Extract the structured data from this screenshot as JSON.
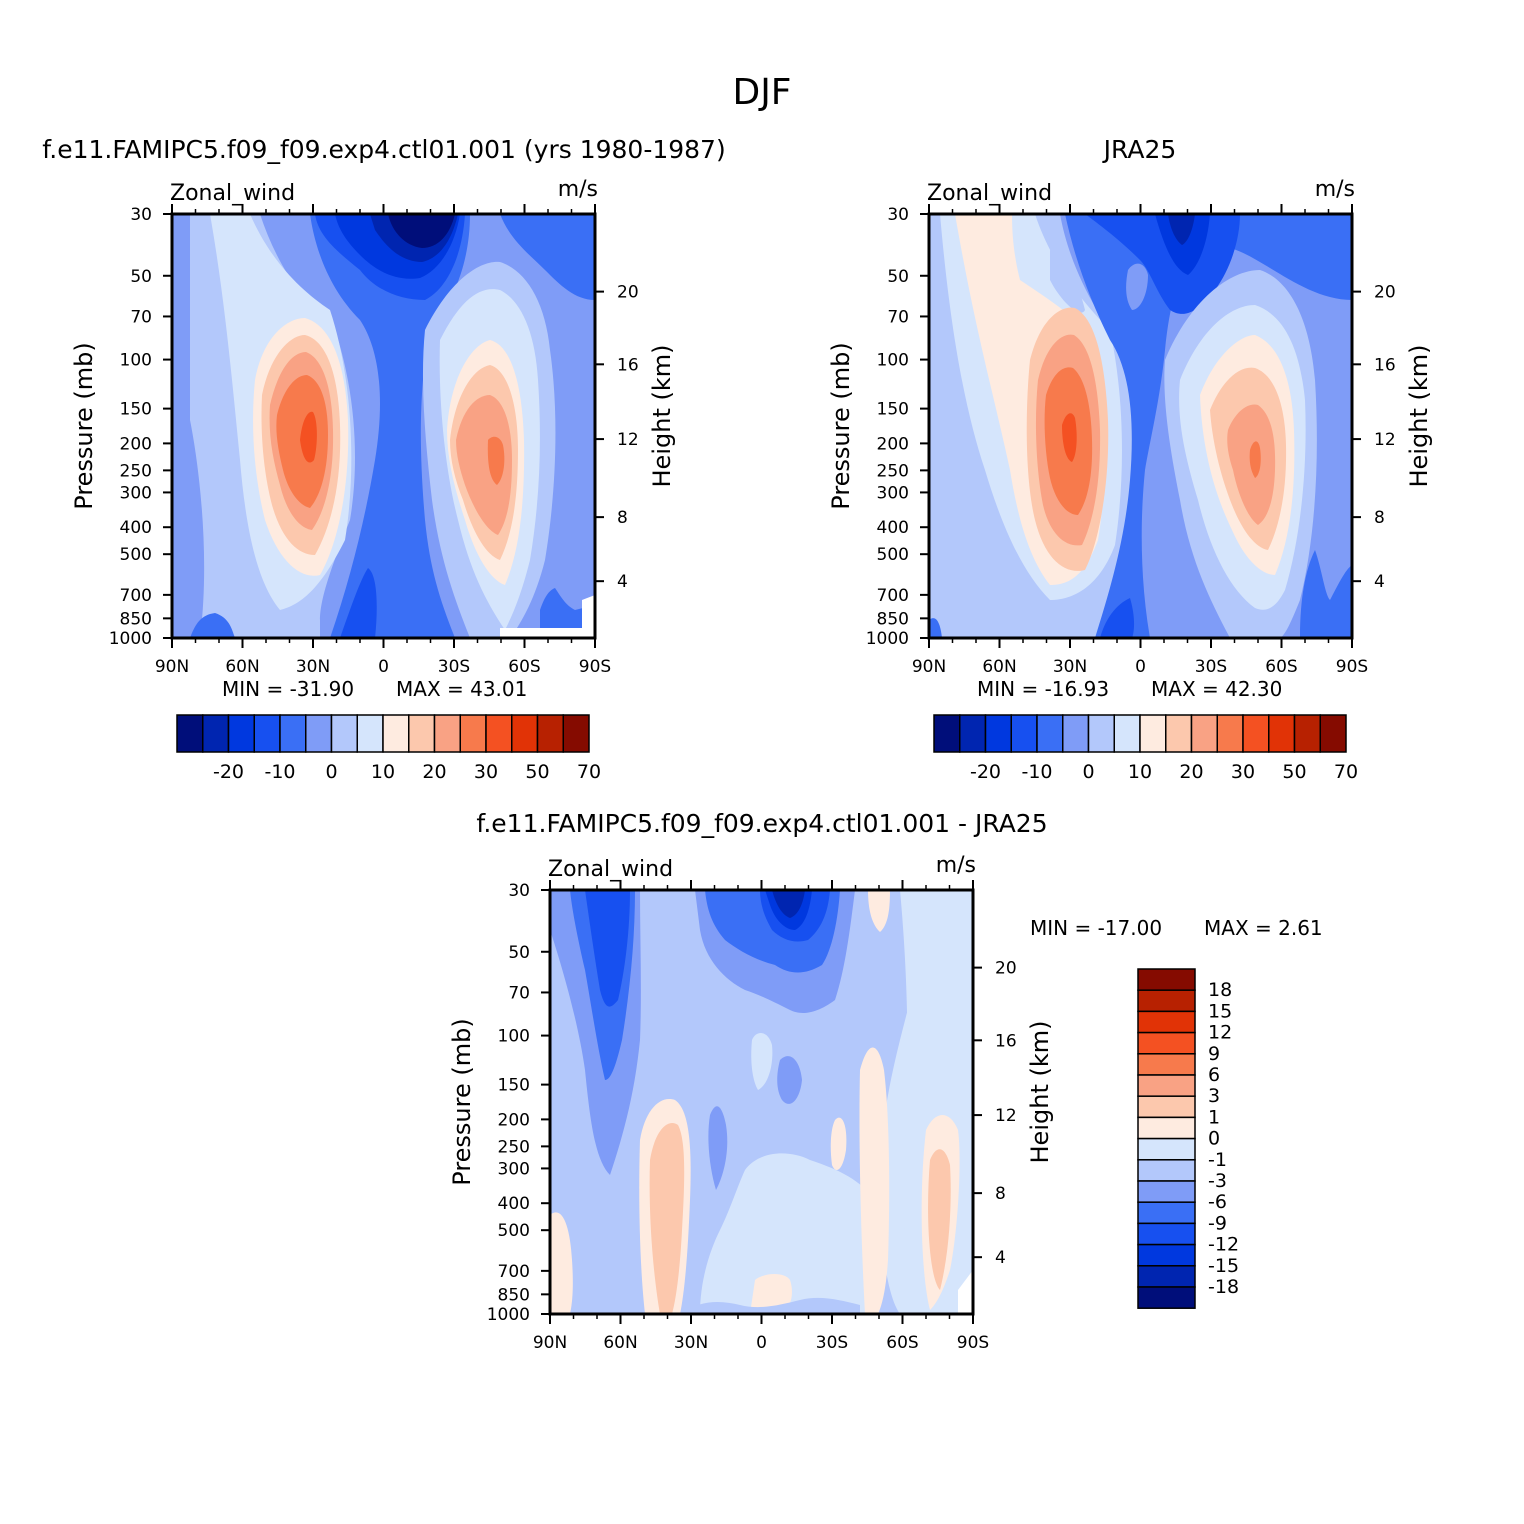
{
  "figure": {
    "title": "DJF",
    "colors": {
      "main_levels": [
        -20,
        -10,
        0,
        10,
        20,
        30,
        50,
        70
      ],
      "main_palette": [
        "#000e7a",
        "#0025b0",
        "#0038df",
        "#1750f0",
        "#3a6ff5",
        "#7f9cf7",
        "#b3c8fb",
        "#d5e5fc",
        "#feebe0",
        "#fcc8ad",
        "#f9a284",
        "#f77a4c",
        "#f45122",
        "#e13306",
        "#b72101",
        "#850b00"
      ],
      "diff_palette": [
        "#000e7a",
        "#0025b0",
        "#0038df",
        "#1750f0",
        "#3a6ff5",
        "#7f9cf7",
        "#b3c8fb",
        "#d5e5fc",
        "#feebe0",
        "#fcc8ad",
        "#f9a284",
        "#f77a4c",
        "#f45122",
        "#e13306",
        "#b72101",
        "#850b00"
      ]
    }
  },
  "chart_data": [
    {
      "type": "heatmap",
      "title": "f.e11.FAMIPC5.f09_f09.exp4.ctl01.001 (yrs 1980-1987)",
      "left_label": "Zonal_wind",
      "right_label": "m/s",
      "ylabel": "Pressure (mb)",
      "y2label": "Height (km)",
      "x_ticks": [
        "90N",
        "60N",
        "30N",
        "0",
        "30S",
        "60S",
        "90S"
      ],
      "y_ticks": [
        "30",
        "50",
        "70",
        "100",
        "150",
        "200",
        "250",
        "300",
        "400",
        "500",
        "700",
        "850",
        "1000"
      ],
      "y2_ticks": [
        "20",
        "16",
        "12",
        "8",
        "4"
      ],
      "min_label": "MIN = -31.90",
      "max_label": "MAX = 43.01",
      "colorbar_labels": [
        "-20",
        "-10",
        "0",
        "10",
        "20",
        "30",
        "50",
        "70"
      ],
      "features": [
        {
          "name": "northern subtropical jet",
          "lat": 30,
          "pressure_mb": 200,
          "value": 43.01
        },
        {
          "name": "southern subtropical jet",
          "lat": -48,
          "pressure_mb": 250,
          "value": 36
        },
        {
          "name": "tropical easterlies",
          "lat": -12,
          "pressure_mb": 30,
          "value": -31.9
        }
      ]
    },
    {
      "type": "heatmap",
      "title": "JRA25",
      "left_label": "Zonal_wind",
      "right_label": "m/s",
      "ylabel": "Pressure (mb)",
      "y2label": "Height (km)",
      "x_ticks": [
        "90N",
        "60N",
        "30N",
        "0",
        "30S",
        "60S",
        "90S"
      ],
      "y_ticks": [
        "30",
        "50",
        "70",
        "100",
        "150",
        "200",
        "250",
        "300",
        "400",
        "500",
        "700",
        "850",
        "1000"
      ],
      "y2_ticks": [
        "20",
        "16",
        "12",
        "8",
        "4"
      ],
      "min_label": "MIN = -16.93",
      "max_label": "MAX = 42.30",
      "colorbar_labels": [
        "-20",
        "-10",
        "0",
        "10",
        "20",
        "30",
        "50",
        "70"
      ],
      "features": [
        {
          "name": "northern subtropical jet",
          "lat": 30,
          "pressure_mb": 200,
          "value": 42.3
        },
        {
          "name": "southern subtropical jet",
          "lat": -48,
          "pressure_mb": 250,
          "value": 33
        },
        {
          "name": "tropical easterlies",
          "lat": -18,
          "pressure_mb": 30,
          "value": -16.93
        }
      ]
    },
    {
      "type": "heatmap",
      "title": "f.e11.FAMIPC5.f09_f09.exp4.ctl01.001 - JRA25",
      "left_label": "Zonal_wind",
      "right_label": "m/s",
      "ylabel": "Pressure (mb)",
      "y2label": "Height (km)",
      "x_ticks": [
        "90N",
        "60N",
        "30N",
        "0",
        "30S",
        "60S",
        "90S"
      ],
      "y_ticks": [
        "30",
        "50",
        "70",
        "100",
        "150",
        "200",
        "250",
        "300",
        "400",
        "500",
        "700",
        "850",
        "1000"
      ],
      "y2_ticks": [
        "20",
        "16",
        "12",
        "8",
        "4"
      ],
      "min_label": "MIN = -17.00",
      "max_label": "MAX = 2.61",
      "colorbar_labels": [
        "18",
        "15",
        "12",
        "9",
        "6",
        "3",
        "1",
        "0",
        "-1",
        "-3",
        "-6",
        "-9",
        "-12",
        "-15",
        "-18"
      ],
      "features": [
        {
          "name": "negative bias high latitudes",
          "lat": 63,
          "pressure_mb": 50,
          "value": -11
        },
        {
          "name": "negative bias tropics",
          "lat": -8,
          "pressure_mb": 30,
          "value": -17.0
        },
        {
          "name": "positive bias subtropics",
          "lat": 38,
          "pressure_mb": 400,
          "value": 2.61
        }
      ]
    }
  ]
}
